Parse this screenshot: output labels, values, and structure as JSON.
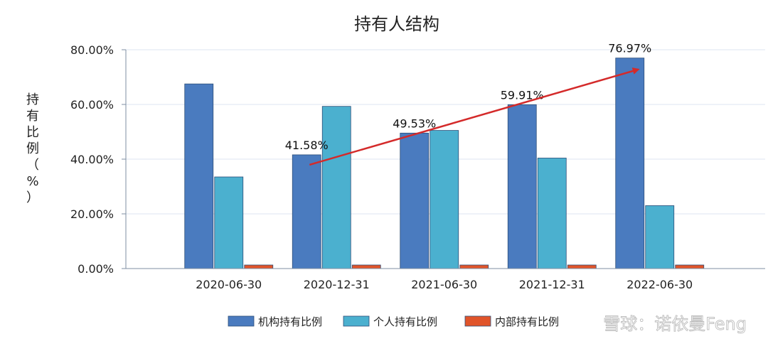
{
  "chart_data": {
    "type": "bar",
    "title": "持有人结构",
    "ylabel_chars": [
      "持",
      "有",
      "比",
      "例",
      "（",
      "%",
      "）"
    ],
    "categories": [
      "2020-06-30",
      "2020-12-31",
      "2021-06-30",
      "2021-12-31",
      "2022-06-30"
    ],
    "series": [
      {
        "name": "机构持有比例",
        "values": [
          67.5,
          41.58,
          49.53,
          59.91,
          76.97
        ],
        "color": "#4a7bbf"
      },
      {
        "name": "个人持有比例",
        "values": [
          33.5,
          59.3,
          50.5,
          40.4,
          23.0
        ],
        "color": "#4bb0cf"
      },
      {
        "name": "内部持有比例",
        "values": [
          1.2,
          1.3,
          1.3,
          1.3,
          1.3
        ],
        "color": "#e0542a"
      }
    ],
    "data_labels": [
      "",
      "41.58%",
      "49.53%",
      "59.91%",
      "76.97%"
    ],
    "yticks": [
      "0.00%",
      "20.00%",
      "40.00%",
      "60.00%",
      "80.00%"
    ],
    "ylim": [
      0,
      80
    ],
    "grid": true,
    "legend": "bottom",
    "annotation": {
      "type": "trend-arrow",
      "color": "#d42a2a"
    }
  },
  "watermark": {
    "text": "雪球：诺依曼Feng"
  }
}
